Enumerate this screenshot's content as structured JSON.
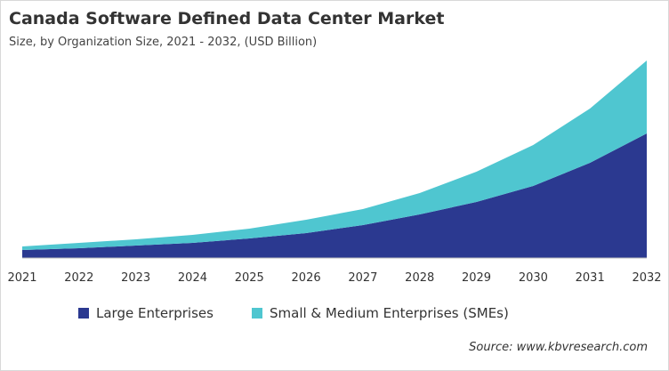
{
  "chart_data": {
    "type": "area",
    "stacked": true,
    "title": "Canada Software Defined Data Center Market",
    "subtitle": "Size, by Organization Size, 2021 - 2032, (USD Billion)",
    "xlabel": "",
    "ylabel": "",
    "x": [
      "2021",
      "2022",
      "2023",
      "2024",
      "2025",
      "2026",
      "2027",
      "2028",
      "2029",
      "2030",
      "2031",
      "2032"
    ],
    "series": [
      {
        "name": "Large Enterprises",
        "color": "#2b3990",
        "values": [
          9,
          11,
          14,
          17,
          22,
          28,
          37,
          49,
          63,
          81,
          107,
          140
        ]
      },
      {
        "name": "Small & Medium Enterprises (SMEs)",
        "color": "#4fc6d0",
        "values": [
          4,
          6,
          7,
          9,
          11,
          15,
          18,
          24,
          34,
          46,
          61,
          82
        ]
      }
    ],
    "ylim": [
      0,
      240
    ],
    "y_axis_shown": false,
    "grid": false,
    "legend": "bottom",
    "note": "values are relative estimates; no y-axis printed"
  },
  "source": "Source: www.kbvresearch.com"
}
